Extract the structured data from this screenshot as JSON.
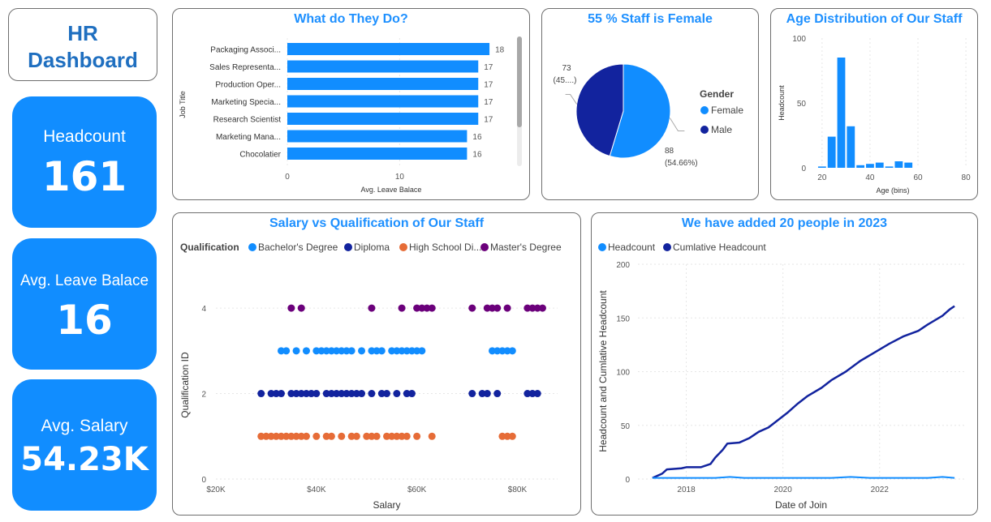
{
  "dashboard_title": [
    "HR",
    "Dashboard"
  ],
  "kpis": {
    "headcount": {
      "label": "Headcount",
      "value": "161"
    },
    "leave": {
      "label": "Avg. Leave Balace",
      "value": "16"
    },
    "salary": {
      "label": "Avg. Salary",
      "value": "54.23K"
    }
  },
  "colors": {
    "accent": "#118DFF",
    "dark": "#12239E",
    "orange": "#E66C37",
    "purple": "#6B007B",
    "title": "#1E90FF"
  },
  "chart_data": [
    {
      "id": "job",
      "type": "bar",
      "orientation": "horizontal",
      "title": "What do They Do?",
      "xlabel": "Avg. Leave Balace",
      "ylabel": "Job Title",
      "categories": [
        "Packaging Associ...",
        "Sales Representa...",
        "Production Oper...",
        "Marketing Specia...",
        "Research Scientist",
        "Marketing Mana...",
        "Chocolatier"
      ],
      "values": [
        18,
        17,
        17,
        17,
        17,
        16,
        16
      ],
      "xticks": [
        0,
        10
      ],
      "xlim": [
        0,
        18.5
      ]
    },
    {
      "id": "gender",
      "type": "pie",
      "title": "55 % Staff is Female",
      "legend_title": "Gender",
      "legend_position": "right",
      "slices": [
        {
          "name": "Female",
          "value": 88,
          "label": "88",
          "pct": "(54.66%)"
        },
        {
          "name": "Male",
          "value": 73,
          "label": "73",
          "pct": "(45....)"
        }
      ]
    },
    {
      "id": "age",
      "type": "bar",
      "title": "Age Distribution of Our Staff",
      "xlabel": "Age (bins)",
      "ylabel": "Headcount",
      "bin_width": 4,
      "bins": [
        {
          "x": 20,
          "y": 1
        },
        {
          "x": 24,
          "y": 24
        },
        {
          "x": 28,
          "y": 85
        },
        {
          "x": 32,
          "y": 32
        },
        {
          "x": 36,
          "y": 2
        },
        {
          "x": 40,
          "y": 3
        },
        {
          "x": 44,
          "y": 4
        },
        {
          "x": 48,
          "y": 1
        },
        {
          "x": 52,
          "y": 5
        },
        {
          "x": 56,
          "y": 4
        }
      ],
      "xlim": [
        17,
        82
      ],
      "ylim": [
        0,
        100
      ],
      "xticks": [
        20,
        40,
        60,
        80
      ],
      "yticks": [
        0,
        50,
        100
      ]
    },
    {
      "id": "salary",
      "type": "scatter",
      "title": "Salary vs Qualification of Our Staff",
      "xlabel": "Salary",
      "ylabel": "Qualification ID",
      "legend_title": "Qualification",
      "legend_position": "top-left",
      "xlim": [
        20000,
        88000
      ],
      "ylim": [
        0,
        4.4
      ],
      "xticks": [
        20000,
        40000,
        60000,
        80000
      ],
      "xtick_labels": [
        "$20K",
        "$40K",
        "$60K",
        "$80K"
      ],
      "yticks": [
        0,
        2,
        4
      ],
      "series": [
        {
          "name": "Bachelor's Degree",
          "y": 3,
          "x": [
            33000,
            34000,
            36000,
            38000,
            40000,
            41000,
            42000,
            43000,
            44000,
            45000,
            46000,
            47000,
            49000,
            51000,
            52000,
            53000,
            55000,
            56000,
            57000,
            58000,
            59000,
            60000,
            61000,
            75000,
            76000,
            77000,
            78000,
            79000
          ]
        },
        {
          "name": "Diploma",
          "y": 2,
          "x": [
            29000,
            31000,
            32000,
            33000,
            35000,
            36000,
            37000,
            38000,
            39000,
            40000,
            42000,
            43000,
            44000,
            45000,
            46000,
            47000,
            48000,
            49000,
            51000,
            53000,
            54000,
            56000,
            58000,
            59000,
            71000,
            73000,
            74000,
            76000,
            82000,
            83000,
            84000
          ]
        },
        {
          "name": "High School Di...",
          "y": 1,
          "x": [
            29000,
            30000,
            31000,
            32000,
            33000,
            34000,
            35000,
            36000,
            37000,
            38000,
            40000,
            42000,
            43000,
            45000,
            47000,
            48000,
            50000,
            51000,
            52000,
            54000,
            55000,
            56000,
            57000,
            58000,
            60000,
            63000,
            77000,
            78000,
            79000
          ]
        },
        {
          "name": "Master's Degree",
          "y": 4,
          "x": [
            35000,
            37000,
            51000,
            57000,
            60000,
            61000,
            62000,
            63000,
            71000,
            74000,
            75000,
            76000,
            78000,
            82000,
            83000,
            84000,
            85000
          ]
        }
      ]
    },
    {
      "id": "growth",
      "type": "line",
      "title": "We have added 20 people in 2023",
      "xlabel": "Date of Join",
      "ylabel": "Headcount and Cumlative Headcount",
      "legend_position": "top-left",
      "xlim": [
        2017.0,
        2023.75
      ],
      "ylim": [
        0,
        200
      ],
      "xticks": [
        2018,
        2020,
        2022
      ],
      "yticks": [
        0,
        50,
        100,
        150,
        200
      ],
      "series": [
        {
          "name": "Headcount",
          "points": [
            [
              2017.3,
              1
            ],
            [
              2017.8,
              1
            ],
            [
              2018.2,
              1
            ],
            [
              2018.6,
              1
            ],
            [
              2018.9,
              2
            ],
            [
              2019.2,
              1
            ],
            [
              2019.8,
              1
            ],
            [
              2020.5,
              1
            ],
            [
              2021.0,
              1
            ],
            [
              2021.4,
              2
            ],
            [
              2021.8,
              1
            ],
            [
              2022.4,
              1
            ],
            [
              2023.0,
              1
            ],
            [
              2023.3,
              2
            ],
            [
              2023.55,
              1
            ]
          ]
        },
        {
          "name": "Cumlative Headcount",
          "points": [
            [
              2017.3,
              1
            ],
            [
              2017.5,
              5
            ],
            [
              2017.6,
              9
            ],
            [
              2017.9,
              10
            ],
            [
              2018.0,
              11
            ],
            [
              2018.3,
              11
            ],
            [
              2018.5,
              14
            ],
            [
              2018.6,
              20
            ],
            [
              2018.75,
              27
            ],
            [
              2018.85,
              33
            ],
            [
              2019.1,
              34
            ],
            [
              2019.3,
              38
            ],
            [
              2019.5,
              44
            ],
            [
              2019.7,
              48
            ],
            [
              2019.9,
              55
            ],
            [
              2020.1,
              62
            ],
            [
              2020.3,
              70
            ],
            [
              2020.5,
              77
            ],
            [
              2020.8,
              85
            ],
            [
              2021.0,
              92
            ],
            [
              2021.3,
              100
            ],
            [
              2021.6,
              110
            ],
            [
              2021.9,
              118
            ],
            [
              2022.2,
              126
            ],
            [
              2022.5,
              133
            ],
            [
              2022.8,
              138
            ],
            [
              2023.0,
              144
            ],
            [
              2023.3,
              152
            ],
            [
              2023.45,
              158
            ],
            [
              2023.55,
              161
            ]
          ]
        }
      ]
    }
  ]
}
